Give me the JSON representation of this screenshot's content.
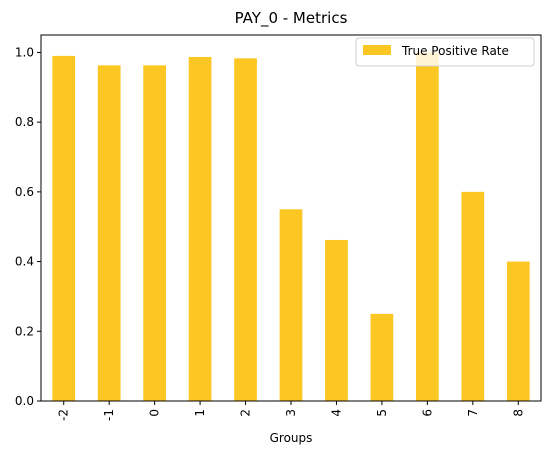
{
  "chart_data": {
    "type": "bar",
    "title": "PAY_0 - Metrics",
    "xlabel": "Groups",
    "ylabel": "",
    "categories": [
      "-2",
      "-1",
      "0",
      "1",
      "2",
      "3",
      "4",
      "5",
      "6",
      "7",
      "8"
    ],
    "series": [
      {
        "name": "True Positive Rate",
        "values": [
          0.99,
          0.963,
          0.963,
          0.987,
          0.983,
          0.55,
          0.462,
          0.25,
          1.0,
          0.6,
          0.4
        ],
        "color": "#fcc623"
      }
    ],
    "ylim": [
      0,
      1.05
    ],
    "yticks": [
      0.0,
      0.2,
      0.4,
      0.6,
      0.8,
      1.0
    ],
    "ytick_labels": [
      "0.0",
      "0.2",
      "0.4",
      "0.6",
      "0.8",
      "1.0"
    ],
    "legend_position": "top-right",
    "grid": false
  }
}
